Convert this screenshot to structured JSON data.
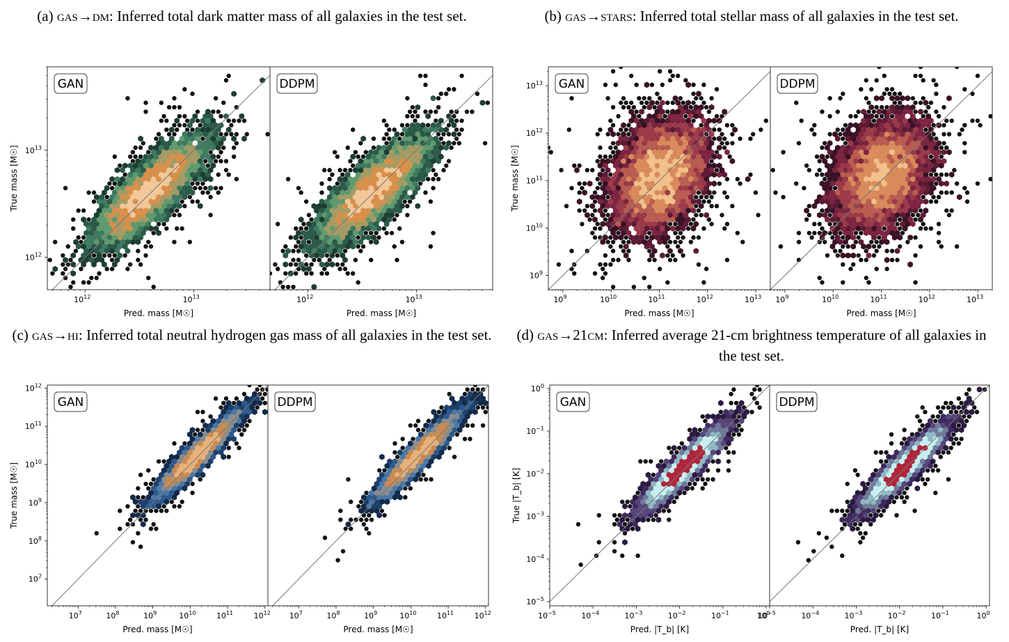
{
  "captions": [
    {
      "id": "a",
      "prefix": "(a) ",
      "sc": "gas→dm",
      "rest": ": Inferred total dark matter mass of all galaxies in the test set."
    },
    {
      "id": "b",
      "prefix": "(b) ",
      "sc": "gas→stars",
      "rest": ": Inferred total stellar mass of all galaxies in the test set."
    },
    {
      "id": "c",
      "prefix": "(c) ",
      "sc": "gas→hi",
      "rest": ": Inferred total neutral hydrogen gas mass of all galaxies in the test set."
    },
    {
      "id": "d",
      "prefix": "(d) ",
      "sc": "gas→21cm",
      "rest": ": Inferred average 21-cm brightness temperature of all galaxies in the test set."
    }
  ],
  "chart_data": [
    {
      "id": "a",
      "type": "heatmap",
      "scale": "log",
      "xlabel": "Pred. mass [M☉]",
      "ylabel": "True mass [M☉]",
      "xlim": [
        450000000000.0,
        50000000000000.0
      ],
      "ylim": [
        500000000000.0,
        60000000000000.0
      ],
      "xticks": [
        12,
        13
      ],
      "yticks": [
        12,
        13
      ],
      "panels": [
        "GAN",
        "DDPM"
      ],
      "cloud": {
        "center": [
          12.6,
          12.62
        ],
        "sigma_along": 0.34,
        "sigma_across": 0.11,
        "angle_deg": 45
      },
      "palette": [
        "#0d1a16",
        "#1d3d31",
        "#2b5a48",
        "#3e7a60",
        "#5f9a6e",
        "#a49a63",
        "#d88f4a",
        "#f2c799"
      ]
    },
    {
      "id": "b",
      "type": "heatmap",
      "scale": "log",
      "xlabel": "Pred. mass [M☉]",
      "ylabel": "True mass [M☉]",
      "xlim": [
        500000000.0,
        20000000000000.0
      ],
      "ylim": [
        500000000.0,
        25000000000000.0
      ],
      "xticks": [
        9,
        10,
        11,
        12,
        13
      ],
      "yticks": [
        9,
        10,
        11,
        12,
        13
      ],
      "panels": [
        "GAN",
        "DDPM"
      ],
      "cloud": {
        "center": [
          11.0,
          11.1
        ],
        "sigma_along": 0.65,
        "sigma_across": 0.45,
        "angle_deg": 60
      },
      "palette": [
        "#1a0a12",
        "#3a1124",
        "#5c1a34",
        "#7c2440",
        "#9a3a48",
        "#b85c50",
        "#d88a5a",
        "#f2c08a"
      ]
    },
    {
      "id": "c",
      "type": "heatmap",
      "scale": "log",
      "xlabel": "Pred. mass [M☉]",
      "ylabel": "True mass [M☉]",
      "xlim": [
        1500000.0,
        1200000000000.0
      ],
      "ylim": [
        2000000.0,
        1200000000000.0
      ],
      "xticks": [
        7,
        8,
        9,
        10,
        11,
        12
      ],
      "yticks": [
        7,
        8,
        9,
        10,
        11,
        12
      ],
      "panels": [
        "GAN",
        "DDPM"
      ],
      "cloud": {
        "center": [
          10.2,
          10.25
        ],
        "sigma_along": 0.75,
        "sigma_across": 0.13,
        "angle_deg": 45
      },
      "palette": [
        "#0b1422",
        "#132a4a",
        "#1d3f6c",
        "#2d5a8c",
        "#4a78a8",
        "#8a8c8c",
        "#c88a52",
        "#e8b078"
      ]
    },
    {
      "id": "d",
      "type": "heatmap",
      "scale": "log",
      "xlabel": "Pred. |T_b| [K]",
      "ylabel": "True |T_b| [K]",
      "xlim": [
        1e-05,
        1.2
      ],
      "ylim": [
        8e-06,
        1.2
      ],
      "xticks": [
        -5,
        -4,
        -3,
        -2,
        -1,
        0
      ],
      "yticks": [
        -5,
        -4,
        -3,
        -2,
        -1,
        0
      ],
      "panels": [
        "GAN",
        "DDPM"
      ],
      "cloud": {
        "center": [
          -1.9,
          -1.85
        ],
        "sigma_along": 0.65,
        "sigma_across": 0.13,
        "angle_deg": 45
      },
      "palette": [
        "#140b1e",
        "#2a1a40",
        "#3e2a5e",
        "#56467a",
        "#6f7a9a",
        "#8fb8c4",
        "#c8eef0",
        "#b0243a"
      ]
    }
  ]
}
